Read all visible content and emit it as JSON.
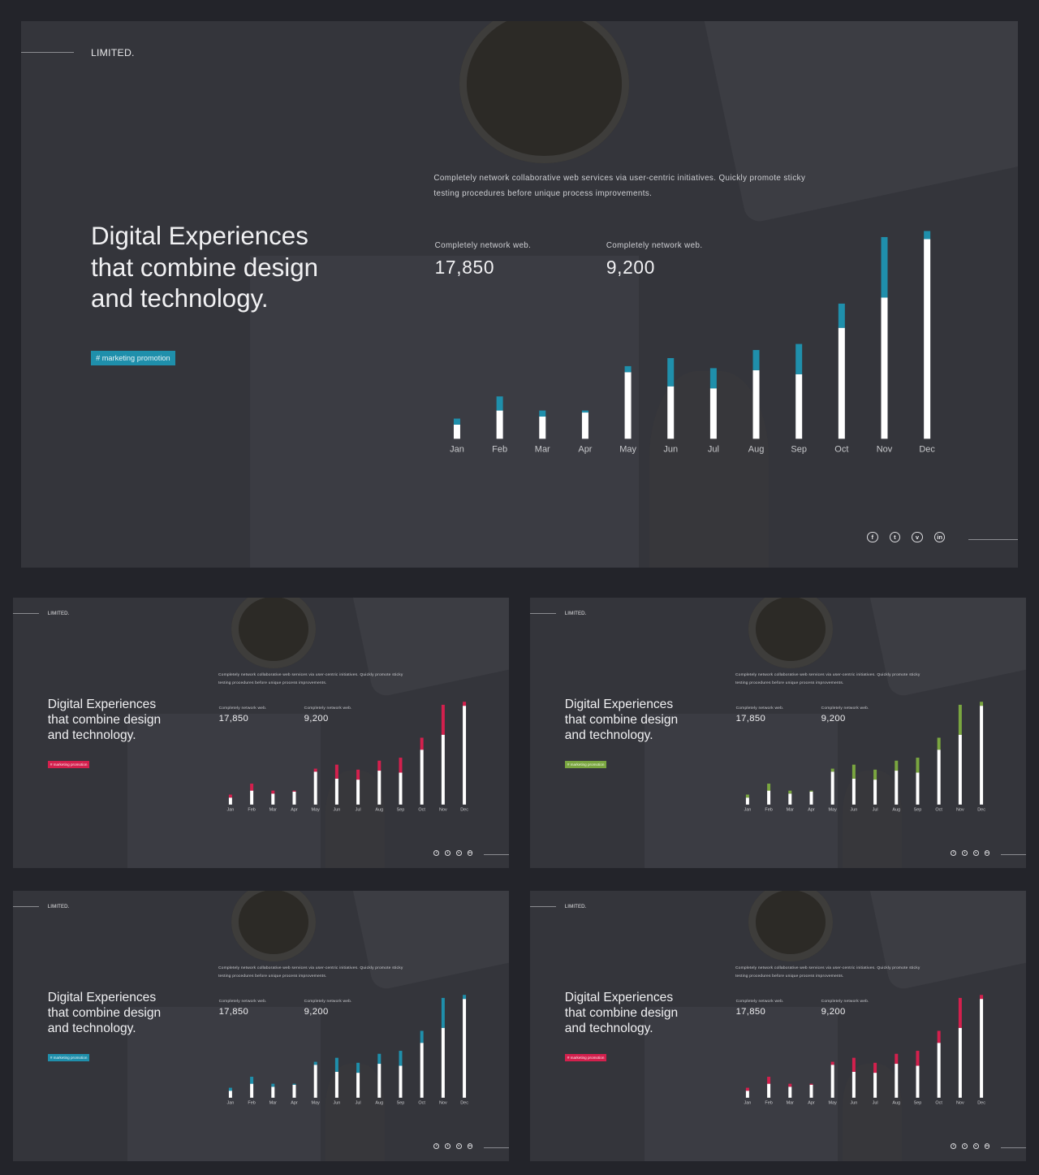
{
  "slide": {
    "brand": "LIMITED.",
    "headline": [
      "Digital Experiences",
      "that combine design",
      "and technology."
    ],
    "tag": "# marketing promotion",
    "intro": "Completely network collaborative web services via user-centric initiatives. Quickly promote sticky testing procedures before unique process improvements.",
    "stats": [
      {
        "label": "Completely network web.",
        "value": "17,850"
      },
      {
        "label": "Completely network web.",
        "value": "9,200"
      }
    ],
    "socials": [
      {
        "icon": "facebook-icon",
        "glyph": "f"
      },
      {
        "icon": "twitter-icon",
        "glyph": "t"
      },
      {
        "icon": "vimeo-icon",
        "glyph": "v"
      },
      {
        "icon": "linkedin-icon",
        "glyph": "in"
      }
    ]
  },
  "variants": [
    {
      "accent": "#1f8fab",
      "tag_text_color": "#e8f4f7"
    },
    {
      "accent": "#d3204d",
      "tag_text_color": "#fde9ee"
    },
    {
      "accent": "#7aa640",
      "tag_text_color": "#eef6e4"
    },
    {
      "accent": "#1f8fab",
      "tag_text_color": "#e8f4f7"
    },
    {
      "accent": "#d3204d",
      "tag_text_color": "#fde9ee"
    }
  ],
  "chart_data": {
    "type": "bar",
    "stacked": true,
    "categories": [
      "Jan",
      "Feb",
      "Mar",
      "Apr",
      "May",
      "Jun",
      "Jul",
      "Aug",
      "Sep",
      "Oct",
      "Nov",
      "Dec"
    ],
    "series": [
      {
        "color": "#ffffff",
        "values": [
          7,
          14,
          11,
          13,
          33,
          26,
          25,
          34,
          32,
          55,
          70,
          99
        ]
      },
      {
        "color": "accent",
        "values": [
          3,
          7,
          3,
          1,
          3,
          14,
          10,
          10,
          15,
          12,
          30,
          4
        ]
      }
    ],
    "ylim": [
      0,
      104
    ]
  }
}
